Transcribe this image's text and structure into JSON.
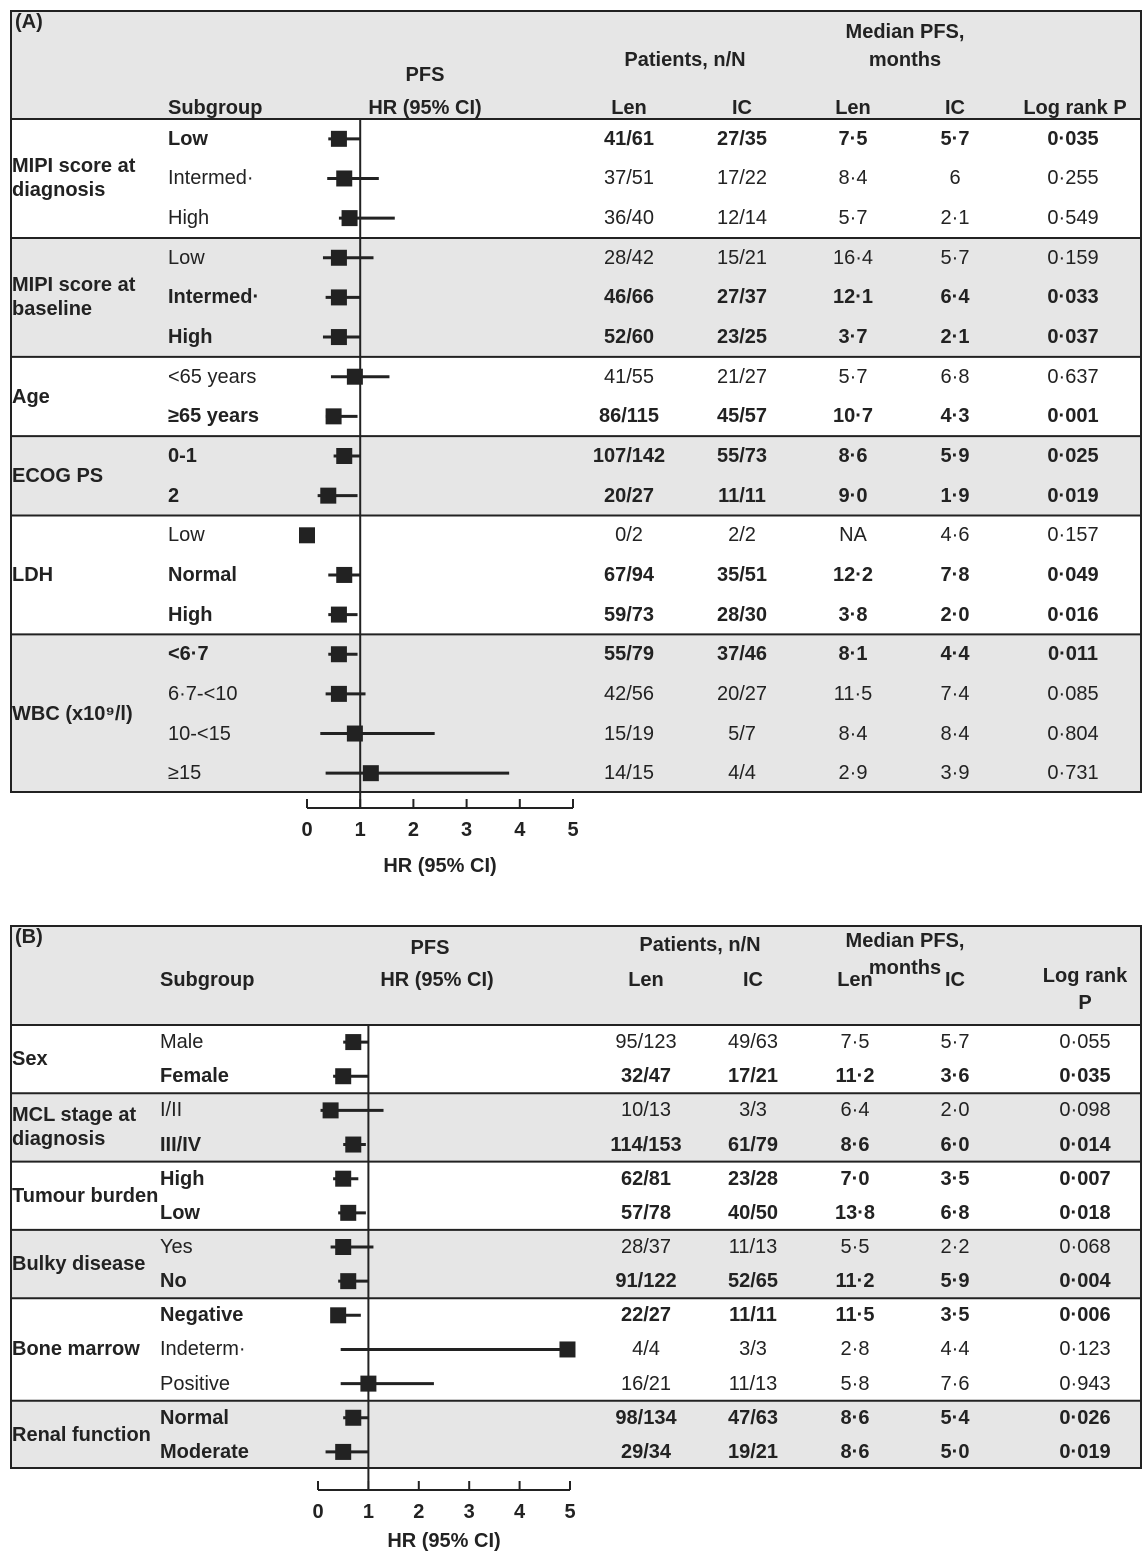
{
  "chart_data": [
    {
      "type": "forest",
      "panel": "(A)",
      "plot_title": "PFS",
      "plot_subtitle": "HR (95% CI)",
      "subgroup_header": "Subgroup",
      "patients_header": "Patients, n/N",
      "median_header": [
        "Median PFS,",
        "months"
      ],
      "subheaders": [
        "Len",
        "IC",
        "Len",
        "IC"
      ],
      "p_header": [
        "Log rank P"
      ],
      "xlim": [
        0,
        5
      ],
      "xticks": [
        0,
        1,
        2,
        3,
        4,
        5
      ],
      "xlabel": "HR (95% CI)",
      "reference": 1,
      "color": "#222222",
      "shade": "#e6e6e6",
      "groups": [
        {
          "label": "MIPI score at diagnosis",
          "rows": [
            {
              "label": "Low",
              "bold": true,
              "hr": 0.6,
              "ci": [
                0.4,
                1.0
              ],
              "len": "41/61",
              "ic": "27/35",
              "len_pfs": "7·5",
              "ic_pfs": "5·7",
              "p": "0·035"
            },
            {
              "label": "Intermed·",
              "bold": false,
              "hr": 0.7,
              "ci": [
                0.38,
                1.35
              ],
              "len": "37/51",
              "ic": "17/22",
              "len_pfs": "8·4",
              "ic_pfs": "6",
              "p": "0·255"
            },
            {
              "label": "High",
              "bold": false,
              "hr": 0.8,
              "ci": [
                0.6,
                1.65
              ],
              "len": "36/40",
              "ic": "12/14",
              "len_pfs": "5·7",
              "ic_pfs": "2·1",
              "p": "0·549"
            }
          ]
        },
        {
          "label": "MIPI score at baseline",
          "rows": [
            {
              "label": "Low",
              "bold": false,
              "hr": 0.6,
              "ci": [
                0.3,
                1.25
              ],
              "len": "28/42",
              "ic": "15/21",
              "len_pfs": "16·4",
              "ic_pfs": "5·7",
              "p": "0·159"
            },
            {
              "label": "Intermed·",
              "bold": true,
              "hr": 0.6,
              "ci": [
                0.35,
                1.0
              ],
              "len": "46/66",
              "ic": "27/37",
              "len_pfs": "12·1",
              "ic_pfs": "6·4",
              "p": "0·033"
            },
            {
              "label": "High",
              "bold": true,
              "hr": 0.6,
              "ci": [
                0.3,
                1.0
              ],
              "len": "52/60",
              "ic": "23/25",
              "len_pfs": "3·7",
              "ic_pfs": "2·1",
              "p": "0·037"
            }
          ]
        },
        {
          "label": "Age",
          "rows": [
            {
              "label": "<65 years",
              "bold": false,
              "hr": 0.9,
              "ci": [
                0.45,
                1.55
              ],
              "len": "41/55",
              "ic": "21/27",
              "len_pfs": "5·7",
              "ic_pfs": "6·8",
              "p": "0·637"
            },
            {
              "label": "≥65 years",
              "bold": true,
              "hr": 0.5,
              "ci": [
                0.35,
                0.95
              ],
              "len": "86/115",
              "ic": "45/57",
              "len_pfs": "10·7",
              "ic_pfs": "4·3",
              "p": "0·001"
            }
          ]
        },
        {
          "label": "ECOG PS",
          "rows": [
            {
              "label": "0-1",
              "bold": true,
              "hr": 0.7,
              "ci": [
                0.5,
                1.0
              ],
              "len": "107/142",
              "ic": "55/73",
              "len_pfs": "8·6",
              "ic_pfs": "5·9",
              "p": "0·025"
            },
            {
              "label": "2",
              "bold": true,
              "hr": 0.4,
              "ci": [
                0.2,
                0.95
              ],
              "len": "20/27",
              "ic": "11/11",
              "len_pfs": "9·0",
              "ic_pfs": "1·9",
              "p": "0·019"
            }
          ]
        },
        {
          "label": "LDH",
          "rows": [
            {
              "label": "Low",
              "bold": false,
              "hr": 0,
              "ci": null,
              "len": "0/2",
              "ic": "2/2",
              "len_pfs": "NA",
              "ic_pfs": "4·6",
              "p": "0·157"
            },
            {
              "label": "Normal",
              "bold": true,
              "hr": 0.7,
              "ci": [
                0.4,
                1.0
              ],
              "len": "67/94",
              "ic": "35/51",
              "len_pfs": "12·2",
              "ic_pfs": "7·8",
              "p": "0·049"
            },
            {
              "label": "High",
              "bold": true,
              "hr": 0.6,
              "ci": [
                0.4,
                0.95
              ],
              "len": "59/73",
              "ic": "28/30",
              "len_pfs": "3·8",
              "ic_pfs": "2·0",
              "p": "0·016"
            }
          ]
        },
        {
          "label": "WBC (x10⁹/l)",
          "rows": [
            {
              "label": "<6·7",
              "bold": true,
              "hr": 0.6,
              "ci": [
                0.4,
                0.95
              ],
              "len": "55/79",
              "ic": "37/46",
              "len_pfs": "8·1",
              "ic_pfs": "4·4",
              "p": "0·011"
            },
            {
              "label": "6·7-<10",
              "bold": false,
              "hr": 0.6,
              "ci": [
                0.35,
                1.1
              ],
              "len": "42/56",
              "ic": "20/27",
              "len_pfs": "11·5",
              "ic_pfs": "7·4",
              "p": "0·085"
            },
            {
              "label": "10-<15",
              "bold": false,
              "hr": 0.9,
              "ci": [
                0.25,
                2.4
              ],
              "len": "15/19",
              "ic": "5/7",
              "len_pfs": "8·4",
              "ic_pfs": "8·4",
              "p": "0·804"
            },
            {
              "label": "≥15",
              "bold": false,
              "hr": 1.2,
              "ci": [
                0.35,
                3.8
              ],
              "len": "14/15",
              "ic": "4/4",
              "len_pfs": "2·9",
              "ic_pfs": "3·9",
              "p": "0·731"
            }
          ]
        }
      ]
    },
    {
      "type": "forest",
      "panel": "(B)",
      "plot_title": "PFS",
      "plot_subtitle": "HR (95% CI)",
      "subgroup_header": "Subgroup",
      "patients_header": "Patients, n/N",
      "median_header": [
        "Median PFS,",
        "months"
      ],
      "subheaders": [
        "Len",
        "IC",
        "Len",
        "IC"
      ],
      "p_header": [
        "Log rank",
        "P"
      ],
      "xlim": [
        0,
        5
      ],
      "xticks": [
        0,
        1,
        2,
        3,
        4,
        5
      ],
      "xlabel": "HR (95% CI)",
      "reference": 1,
      "color": "#222222",
      "shade": "#e6e6e6",
      "groups": [
        {
          "label": "Sex",
          "rows": [
            {
              "label": "Male",
              "bold": false,
              "hr": 0.7,
              "ci": [
                0.5,
                1.0
              ],
              "len": "95/123",
              "ic": "49/63",
              "len_pfs": "7·5",
              "ic_pfs": "5·7",
              "p": "0·055"
            },
            {
              "label": "Female",
              "bold": true,
              "hr": 0.5,
              "ci": [
                0.3,
                1.0
              ],
              "len": "32/47",
              "ic": "17/21",
              "len_pfs": "11·2",
              "ic_pfs": "3·6",
              "p": "0·035"
            }
          ]
        },
        {
          "label": "MCL stage at diagnosis",
          "rows": [
            {
              "label": "I/II",
              "bold": false,
              "hr": 0.25,
              "ci": [
                0.05,
                1.3
              ],
              "len": "10/13",
              "ic": "3/3",
              "len_pfs": "6·4",
              "ic_pfs": "2·0",
              "p": "0·098"
            },
            {
              "label": "III/IV",
              "bold": true,
              "hr": 0.7,
              "ci": [
                0.5,
                0.95
              ],
              "len": "114/153",
              "ic": "61/79",
              "len_pfs": "8·6",
              "ic_pfs": "6·0",
              "p": "0·014"
            }
          ]
        },
        {
          "label": "Tumour burden",
          "rows": [
            {
              "label": "High",
              "bold": true,
              "hr": 0.5,
              "ci": [
                0.3,
                0.8
              ],
              "len": "62/81",
              "ic": "23/28",
              "len_pfs": "7·0",
              "ic_pfs": "3·5",
              "p": "0·007"
            },
            {
              "label": "Low",
              "bold": true,
              "hr": 0.6,
              "ci": [
                0.4,
                0.95
              ],
              "len": "57/78",
              "ic": "40/50",
              "len_pfs": "13·8",
              "ic_pfs": "6·8",
              "p": "0·018"
            }
          ]
        },
        {
          "label": "Bulky disease",
          "rows": [
            {
              "label": "Yes",
              "bold": false,
              "hr": 0.5,
              "ci": [
                0.25,
                1.1
              ],
              "len": "28/37",
              "ic": "11/13",
              "len_pfs": "5·5",
              "ic_pfs": "2·2",
              "p": "0·068"
            },
            {
              "label": "No",
              "bold": true,
              "hr": 0.6,
              "ci": [
                0.4,
                1.0
              ],
              "len": "91/122",
              "ic": "52/65",
              "len_pfs": "11·2",
              "ic_pfs": "5·9",
              "p": "0·004"
            }
          ]
        },
        {
          "label": "Bone marrow",
          "rows": [
            {
              "label": "Negative",
              "bold": true,
              "hr": 0.4,
              "ci": [
                0.25,
                0.85
              ],
              "len": "22/27",
              "ic": "11/11",
              "len_pfs": "11·5",
              "ic_pfs": "3·5",
              "p": "0·006"
            },
            {
              "label": "Indeterm·",
              "bold": false,
              "hr": 4.95,
              "ci": [
                0.45,
                4.95
              ],
              "len": "4/4",
              "ic": "3/3",
              "len_pfs": "2·8",
              "ic_pfs": "4·4",
              "p": "0·123"
            },
            {
              "label": "Positive",
              "bold": false,
              "hr": 1.0,
              "ci": [
                0.45,
                2.3
              ],
              "len": "16/21",
              "ic": "11/13",
              "len_pfs": "5·8",
              "ic_pfs": "7·6",
              "p": "0·943"
            }
          ]
        },
        {
          "label": "Renal function",
          "rows": [
            {
              "label": "Normal",
              "bold": true,
              "hr": 0.7,
              "ci": [
                0.5,
                1.0
              ],
              "len": "98/134",
              "ic": "47/63",
              "len_pfs": "8·6",
              "ic_pfs": "5·4",
              "p": "0·026"
            },
            {
              "label": "Moderate",
              "bold": true,
              "hr": 0.5,
              "ci": [
                0.15,
                1.0
              ],
              "len": "29/34",
              "ic": "19/21",
              "len_pfs": "8·6",
              "ic_pfs": "5·0",
              "p": "0·019"
            }
          ]
        }
      ]
    }
  ]
}
